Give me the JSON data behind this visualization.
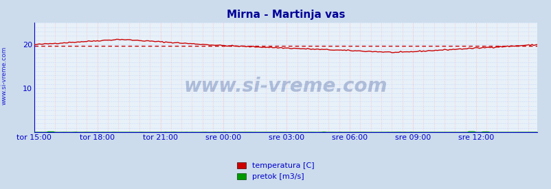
{
  "title": "Mirna - Martinja vas",
  "title_color": "#000099",
  "background_color": "#ccdcec",
  "plot_bg_color": "#e8f0f8",
  "grid_color": "#ffaaaa",
  "grid_color_h": "#aaccff",
  "axis_label_color": "#0000cc",
  "ylabel_text": "www.si-vreme.com",
  "x_tick_labels": [
    "tor 15:00",
    "tor 18:00",
    "tor 21:00",
    "sre 00:00",
    "sre 03:00",
    "sre 06:00",
    "sre 09:00",
    "sre 12:00"
  ],
  "x_tick_positions": [
    0,
    36,
    72,
    108,
    144,
    180,
    216,
    252
  ],
  "ylim": [
    0,
    25
  ],
  "y_ticks": [
    10,
    20
  ],
  "total_points": 288,
  "avg_line_y": 19.65,
  "avg_line_color": "#cc0000",
  "temp_color": "#cc0000",
  "pretok_color": "#009900",
  "legend_labels": [
    "temperatura [C]",
    "pretok [m3/s]"
  ],
  "legend_colors": [
    "#cc0000",
    "#009900"
  ],
  "watermark": "www.si-vreme.com",
  "watermark_color": "#1a3a8a",
  "watermark_alpha": 0.28,
  "spine_color": "#0000cc",
  "arrow_color": "#cc0000"
}
